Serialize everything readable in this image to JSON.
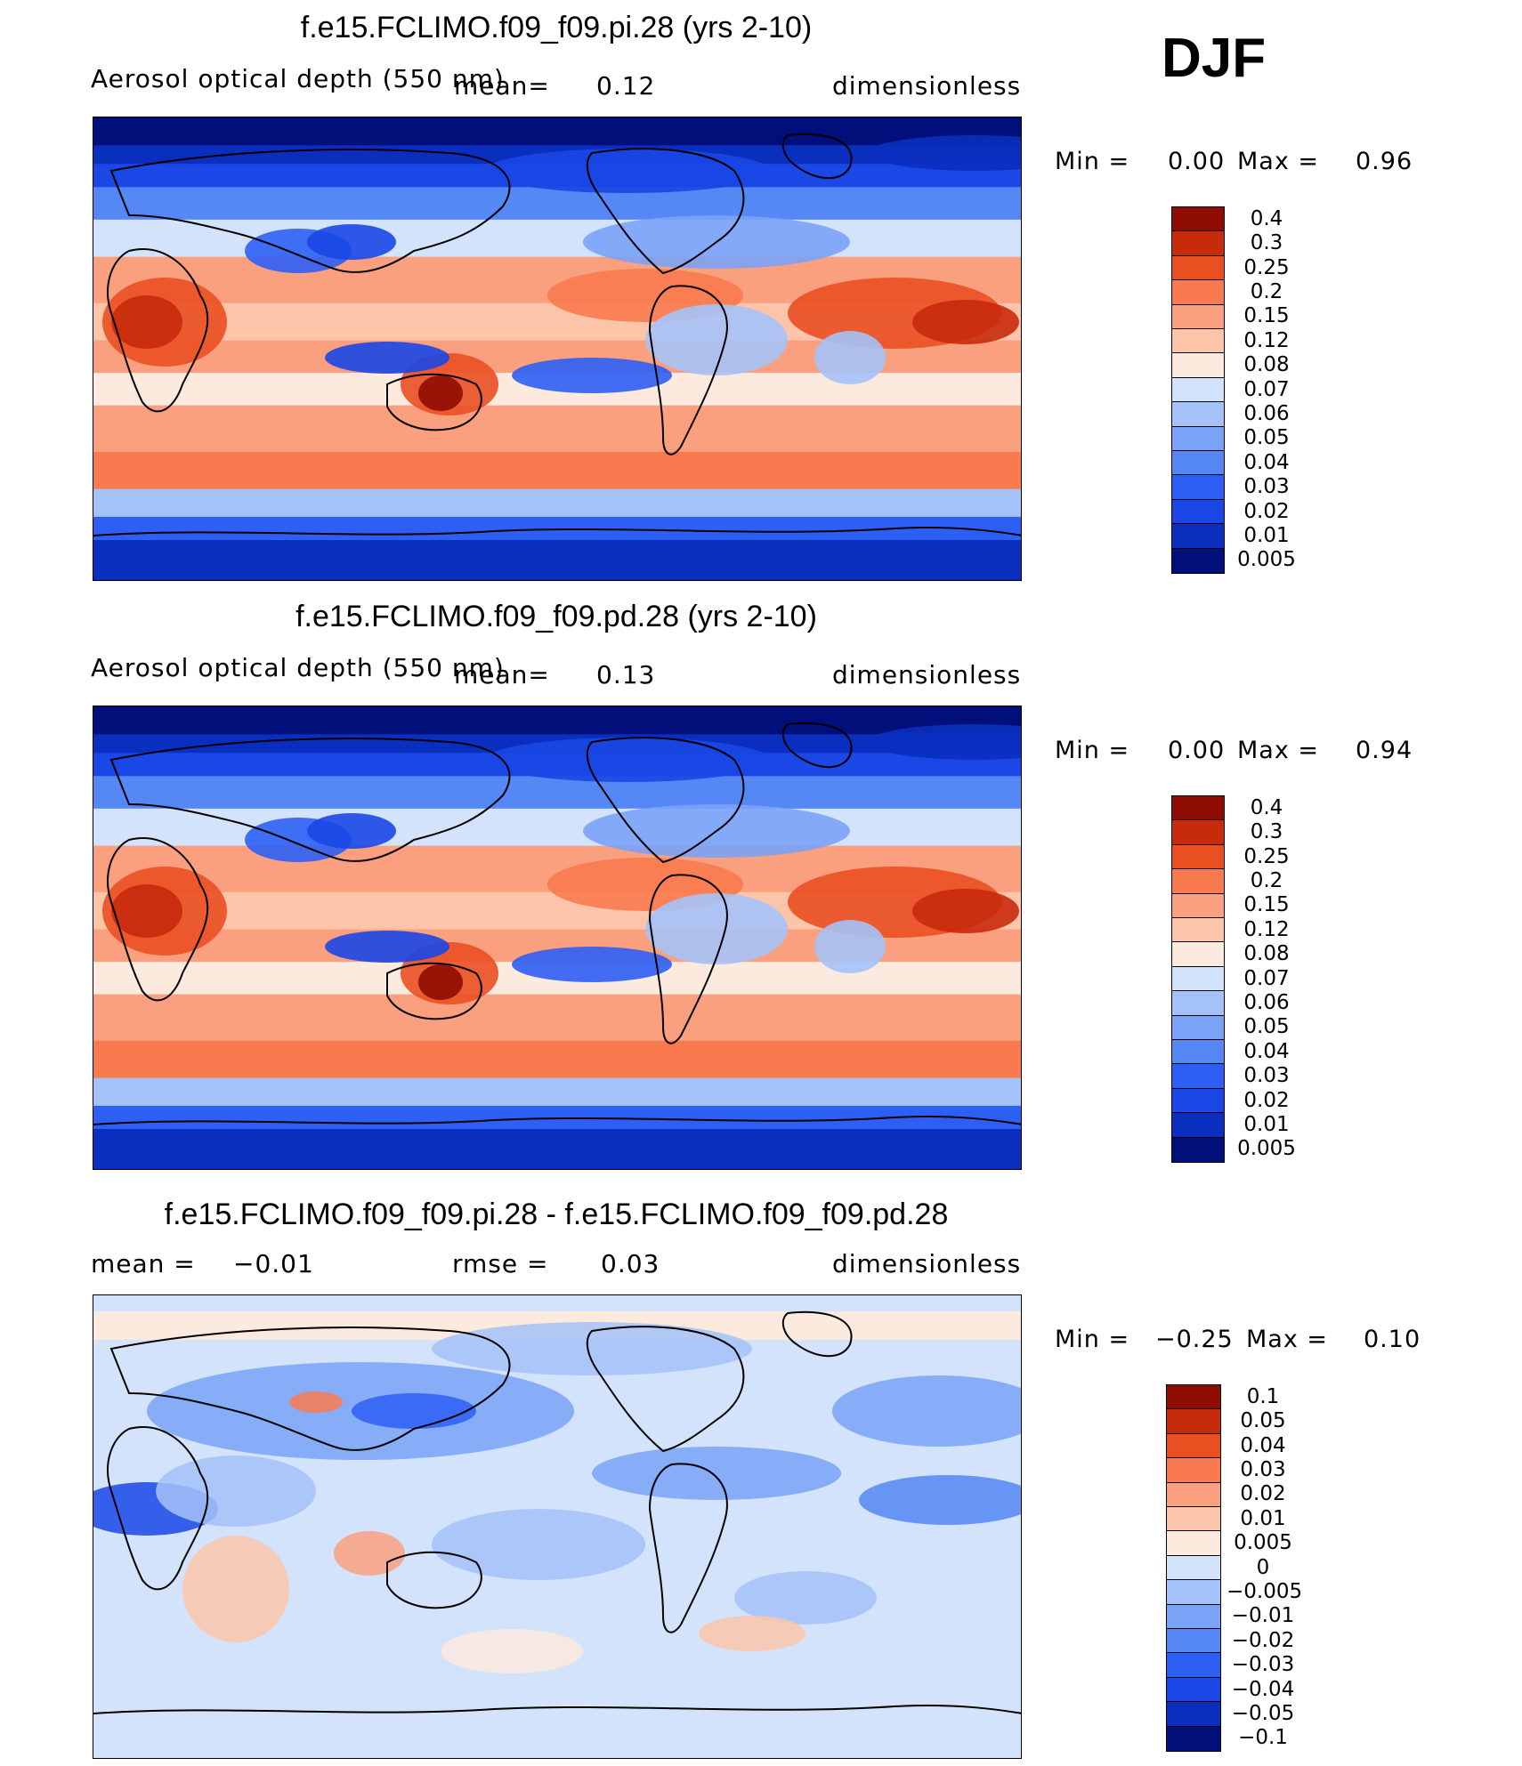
{
  "season": "DJF",
  "colors": {
    "abs_palette": [
      "#000f7a",
      "#0a2fbf",
      "#1a47e6",
      "#2e5ff5",
      "#5587f5",
      "#7aa2f7",
      "#a5c2f8",
      "#d2e3fb",
      "#fdeadf",
      "#fcc5aa",
      "#fba07f",
      "#f97a4f",
      "#ea4f22",
      "#c82a0c",
      "#8e0c02"
    ],
    "diff_palette": [
      "#000f7a",
      "#0a2fbf",
      "#1a47e6",
      "#2e5ff5",
      "#5587f5",
      "#7aa2f7",
      "#a5c2f8",
      "#d2e3fb",
      "#fdeadf",
      "#fcc5aa",
      "#fba07f",
      "#f97a4f",
      "#ea4f22",
      "#c82a0c",
      "#8e0c02"
    ]
  },
  "panels": [
    {
      "title": "f.e15.FCLIMO.f09_f09.pi.28 (yrs 2-10)",
      "variable": "Aerosol optical depth (550 nm)",
      "mean_label": "mean=",
      "mean_value": "0.12",
      "units": "dimensionless",
      "min_label": "Min =",
      "min_value": "0.00",
      "max_label": "Max =",
      "max_value": "0.96",
      "kind": "abs",
      "levels": [
        "0.4",
        "0.3",
        "0.25",
        "0.2",
        "0.15",
        "0.12",
        "0.08",
        "0.07",
        "0.06",
        "0.05",
        "0.04",
        "0.03",
        "0.02",
        "0.01",
        "0.005"
      ]
    },
    {
      "title": "f.e15.FCLIMO.f09_f09.pd.28 (yrs 2-10)",
      "variable": "Aerosol optical depth (550 nm)",
      "mean_label": "mean=",
      "mean_value": "0.13",
      "units": "dimensionless",
      "min_label": "Min =",
      "min_value": "0.00",
      "max_label": "Max =",
      "max_value": "0.94",
      "kind": "abs",
      "levels": [
        "0.4",
        "0.3",
        "0.25",
        "0.2",
        "0.15",
        "0.12",
        "0.08",
        "0.07",
        "0.06",
        "0.05",
        "0.04",
        "0.03",
        "0.02",
        "0.01",
        "0.005"
      ]
    },
    {
      "title": "f.e15.FCLIMO.f09_f09.pi.28 - f.e15.FCLIMO.f09_f09.pd.28",
      "mean_label": "mean =",
      "mean_value": "−0.01",
      "rmse_label": "rmse =",
      "rmse_value": "0.03",
      "units": "dimensionless",
      "min_label": "Min =",
      "min_value": "−0.25",
      "max_label": "Max =",
      "max_value": "0.10",
      "kind": "diff",
      "levels": [
        "0.1",
        "0.05",
        "0.04",
        "0.03",
        "0.02",
        "0.01",
        "0.005",
        "0",
        "−0.005",
        "−0.01",
        "−0.02",
        "−0.03",
        "−0.04",
        "−0.05",
        "−0.1"
      ]
    }
  ],
  "chart_data": [
    {
      "type": "heatmap",
      "title": "f.e15.FCLIMO.f09_f09.pi.28 (yrs 2-10)",
      "field": "Aerosol optical depth (550 nm)",
      "units": "dimensionless",
      "mean": 0.12,
      "min": 0.0,
      "max": 0.96,
      "contour_levels": [
        0.005,
        0.01,
        0.02,
        0.03,
        0.04,
        0.05,
        0.06,
        0.07,
        0.08,
        0.12,
        0.15,
        0.2,
        0.25,
        0.3,
        0.4
      ]
    },
    {
      "type": "heatmap",
      "title": "f.e15.FCLIMO.f09_f09.pd.28 (yrs 2-10)",
      "field": "Aerosol optical depth (550 nm)",
      "units": "dimensionless",
      "mean": 0.13,
      "min": 0.0,
      "max": 0.94,
      "contour_levels": [
        0.005,
        0.01,
        0.02,
        0.03,
        0.04,
        0.05,
        0.06,
        0.07,
        0.08,
        0.12,
        0.15,
        0.2,
        0.25,
        0.3,
        0.4
      ]
    },
    {
      "type": "heatmap",
      "title": "f.e15.FCLIMO.f09_f09.pi.28 - f.e15.FCLIMO.f09_f09.pd.28",
      "units": "dimensionless",
      "mean": -0.01,
      "rmse": 0.03,
      "min": -0.25,
      "max": 0.1,
      "contour_levels": [
        -0.1,
        -0.05,
        -0.04,
        -0.03,
        -0.02,
        -0.01,
        -0.005,
        0,
        0.005,
        0.01,
        0.02,
        0.03,
        0.04,
        0.05,
        0.1
      ]
    }
  ]
}
